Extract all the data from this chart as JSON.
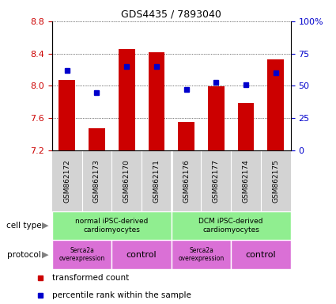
{
  "title": "GDS4435 / 7893040",
  "samples": [
    "GSM862172",
    "GSM862173",
    "GSM862170",
    "GSM862171",
    "GSM862176",
    "GSM862177",
    "GSM862174",
    "GSM862175"
  ],
  "red_values": [
    8.07,
    7.48,
    8.46,
    8.42,
    7.55,
    7.99,
    7.79,
    8.33
  ],
  "blue_percentiles": [
    62,
    45,
    65,
    65,
    47,
    53,
    51,
    60
  ],
  "y_min": 7.2,
  "y_max": 8.8,
  "y_ticks": [
    7.2,
    7.6,
    8.0,
    8.4,
    8.8
  ],
  "right_y_ticks": [
    0,
    25,
    50,
    75,
    100
  ],
  "right_y_labels": [
    "0",
    "25",
    "50",
    "75",
    "100%"
  ],
  "red_color": "#cc0000",
  "blue_color": "#0000cc",
  "bar_width": 0.55,
  "base_value": 7.2,
  "bg_color": "#ffffff",
  "sample_bg_color": "#d3d3d3",
  "cell_type_color": "#90ee90",
  "protocol_color": "#da70d6",
  "cell_type_labels": [
    "normal iPSC-derived\ncardiomyocytes",
    "DCM iPSC-derived\ncardiomyocytes"
  ],
  "cell_type_ranges": [
    [
      0,
      4
    ],
    [
      4,
      8
    ]
  ],
  "protocol_configs": [
    [
      0,
      2,
      "Serca2a\noverexpression"
    ],
    [
      2,
      4,
      "control"
    ],
    [
      4,
      6,
      "Serca2a\noverexpression"
    ],
    [
      6,
      8,
      "control"
    ]
  ],
  "left_labels": [
    "cell type",
    "protocol"
  ],
  "legend_items": [
    {
      "color": "#cc0000",
      "label": "transformed count"
    },
    {
      "color": "#0000cc",
      "label": "percentile rank within the sample"
    }
  ],
  "figsize": [
    4.25,
    3.84
  ],
  "dpi": 100
}
